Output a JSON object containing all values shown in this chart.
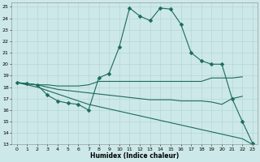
{
  "xlabel": "Humidex (Indice chaleur)",
  "background_color": "#cde8e8",
  "line_color": "#1a6b5a",
  "grid_color": "#afd4d4",
  "xlim": [
    -0.5,
    23.5
  ],
  "ylim": [
    13,
    25.4
  ],
  "xticks": [
    0,
    1,
    2,
    3,
    4,
    5,
    6,
    7,
    8,
    9,
    10,
    11,
    12,
    13,
    14,
    15,
    16,
    17,
    18,
    19,
    20,
    21,
    22,
    23
  ],
  "yticks": [
    13,
    14,
    15,
    16,
    17,
    18,
    19,
    20,
    21,
    22,
    23,
    24,
    25
  ],
  "line_main": {
    "x": [
      0,
      1,
      2,
      3,
      4,
      5,
      6,
      7,
      8,
      9,
      10,
      11,
      12,
      13,
      14,
      15,
      16,
      17,
      18,
      19,
      20,
      21,
      22,
      23
    ],
    "y": [
      18.4,
      18.3,
      18.2,
      17.3,
      16.8,
      16.6,
      16.5,
      16.0,
      18.8,
      19.2,
      21.5,
      24.9,
      24.2,
      23.8,
      24.9,
      24.8,
      23.5,
      21.0,
      20.3,
      20.0,
      20.0,
      17.0,
      15.0,
      13.1
    ]
  },
  "line_flat_high": {
    "x": [
      0,
      1,
      2,
      3,
      4,
      5,
      6,
      7,
      8,
      9,
      10,
      11,
      12,
      13,
      14,
      15,
      16,
      17,
      18,
      19,
      20,
      21,
      22
    ],
    "y": [
      18.4,
      18.3,
      18.2,
      18.2,
      18.1,
      18.1,
      18.1,
      18.2,
      18.5,
      18.5,
      18.5,
      18.5,
      18.5,
      18.5,
      18.5,
      18.5,
      18.5,
      18.5,
      18.5,
      18.8,
      18.8,
      18.8,
      18.9
    ]
  },
  "line_mid_slope": {
    "x": [
      0,
      1,
      2,
      3,
      4,
      5,
      6,
      7,
      8,
      9,
      10,
      11,
      12,
      13,
      14,
      15,
      16,
      17,
      18,
      19,
      20,
      21,
      22
    ],
    "y": [
      18.4,
      18.3,
      18.2,
      18.0,
      17.8,
      17.7,
      17.6,
      17.5,
      17.4,
      17.3,
      17.2,
      17.1,
      17.0,
      16.9,
      16.9,
      16.9,
      16.8,
      16.8,
      16.8,
      16.7,
      16.5,
      17.0,
      17.2
    ]
  },
  "line_steep_down": {
    "x": [
      0,
      1,
      2,
      3,
      4,
      5,
      6,
      7,
      8,
      9,
      10,
      11,
      12,
      13,
      14,
      15,
      16,
      17,
      18,
      19,
      20,
      21,
      22,
      23
    ],
    "y": [
      18.4,
      18.2,
      18.0,
      17.7,
      17.4,
      17.1,
      16.8,
      16.5,
      16.3,
      16.1,
      15.9,
      15.7,
      15.5,
      15.3,
      15.1,
      14.9,
      14.7,
      14.5,
      14.3,
      14.1,
      13.9,
      13.7,
      13.5,
      13.0
    ]
  }
}
